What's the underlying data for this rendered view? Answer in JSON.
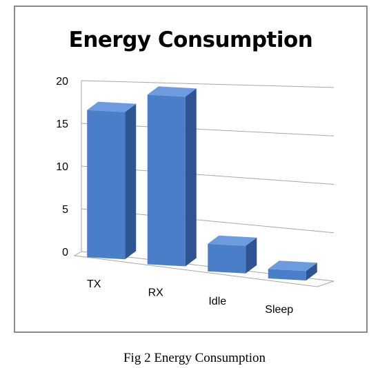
{
  "caption": "Fig 2 Energy Consumption",
  "chart_data": {
    "type": "bar",
    "style": "3d-column",
    "title": "Energy Consumption",
    "xlabel": "",
    "ylabel": "",
    "categories": [
      "TX",
      "RX",
      "Idle",
      "Sleep"
    ],
    "values": [
      17,
      19,
      3,
      1
    ],
    "ylim": [
      0,
      20
    ],
    "yticks": [
      0,
      5,
      10,
      15,
      20
    ],
    "ytick_labels": [
      "0",
      "5",
      "10",
      "15",
      "20"
    ],
    "grid": true,
    "legend": "none",
    "colors": {
      "bar_front": "#4a7ec8",
      "bar_side": "#2e5591",
      "bar_top": "#6d9be0",
      "grid": "#a6a6a6"
    }
  }
}
